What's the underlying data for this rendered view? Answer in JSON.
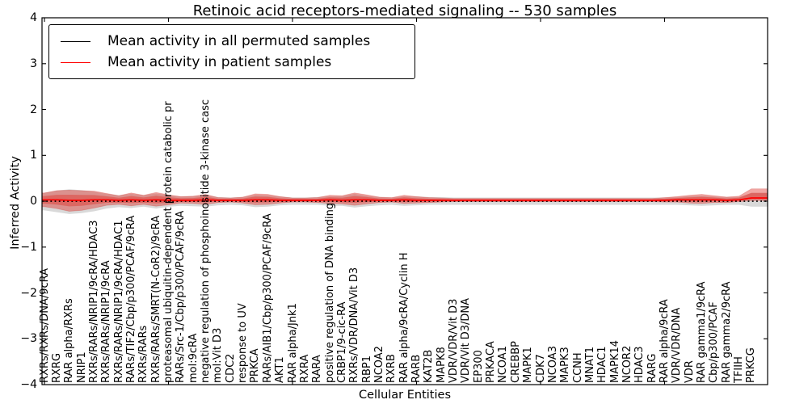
{
  "window": {
    "kind": "static-plot-figure"
  },
  "chart_data": {
    "type": "line",
    "title": "Retinoic acid receptors-mediated signaling -- 530 samples",
    "xlabel": "Cellular Entities",
    "ylabel": "Inferred Activity",
    "ylim": [
      -4,
      4
    ],
    "ytick_values": [
      4,
      3,
      2,
      1,
      0,
      -1,
      -2,
      -3,
      -4
    ],
    "ytick_labels": [
      "4",
      "3",
      "2",
      "1",
      "0",
      "−1",
      "−2",
      "−3",
      "−4"
    ],
    "xtick_interval": 10,
    "grid": false,
    "legend_position": "upper left",
    "categories": [
      "RXRs/RXRs/DNA/9cRA",
      "RXRG",
      "RAR alpha/RXRs",
      "NRIP1",
      "RXRs/RARs/NRIP1/9cRA/HDAC3",
      "RXRs/RARs/NRIP1/9cRA",
      "RXRs/RARs/NRIP1/9cRA/HDAC1",
      "RARs/TIF2/Cbp/p300/PCAF/9cRA",
      "RXRs/RARs",
      "RXRs/RARs/SMRT(N-CoR2)/9cRA",
      "proteasomal ubiquitin-dependent protein catabolic pr",
      "RARs/Src-1/Cbp/p300/PCAF/9cRA",
      "mol:9cRA",
      "negative regulation of phosphoinositide 3-kinase casc",
      "mol:Vit D3",
      "CDC2",
      "response to UV",
      "PRKCA",
      "RARs/AIB1/Cbp/p300/PCAF/9cRA",
      "AKT1",
      "RAR alpha/Jnk1",
      "RXRA",
      "RARA",
      "positive regulation of DNA binding",
      "CRBP1/9-cic-RA",
      "RXRs/VDR/DNA/Vit D3",
      "RBP1",
      "NCOA2",
      "RXRB",
      "RAR alpha/9cRA/Cyclin H",
      "RARB",
      "KAT2B",
      "MAPK8",
      "VDR/VDR/Vit D3",
      "VDR/Vit D3/DNA",
      "EP300",
      "PRKACA",
      "NCOA1",
      "CREBBP",
      "MAPK1",
      "CDK7",
      "NCOA3",
      "MAPK3",
      "CCNH",
      "MNAT1",
      "HDAC1",
      "MAPK14",
      "NCOR2",
      "HDAC3",
      "RARG",
      "RAR alpha/9cRA",
      "VDR/VDR/DNA",
      "VDR",
      "RAR gamma1/9cRA",
      "Cbp/p300/PCAF",
      "RAR gamma2/9cRA",
      "TFIIH",
      "PRKCG"
    ],
    "series": [
      {
        "name": "Mean activity in all permuted samples",
        "color": "#000000",
        "style": "dotted",
        "values": [
          0,
          0,
          0,
          0,
          0,
          0,
          0,
          0,
          0,
          0,
          0,
          0,
          0,
          0,
          0,
          0,
          0,
          0,
          0,
          0,
          0,
          0,
          0,
          0,
          0,
          0,
          0,
          0,
          0,
          0,
          0,
          0,
          0,
          0,
          0,
          0,
          0,
          0,
          0,
          0,
          0,
          0,
          0,
          0,
          0,
          0,
          0,
          0,
          0,
          0,
          0,
          0,
          0,
          0,
          0,
          0,
          0,
          0
        ]
      },
      {
        "name": "Mean activity in patient samples",
        "color": "#ff0000",
        "style": "solid",
        "values": [
          0.03,
          0.03,
          0.02,
          0.02,
          0.03,
          0.03,
          0.02,
          0.03,
          0.02,
          0.03,
          0.02,
          0.02,
          0.02,
          0.03,
          0.02,
          0.02,
          0.02,
          0.03,
          0.03,
          0.02,
          0.02,
          0.02,
          0.02,
          0.03,
          0.02,
          0.03,
          0.03,
          0.02,
          0.02,
          0.03,
          0.02,
          0.02,
          0.02,
          0.02,
          0.02,
          0.02,
          0.02,
          0.02,
          0.02,
          0.02,
          0.02,
          0.02,
          0.02,
          0.02,
          0.02,
          0.02,
          0.02,
          0.02,
          0.02,
          0.02,
          0.02,
          0.03,
          0.03,
          0.03,
          0.03,
          0.02,
          0.03,
          0.07
        ]
      }
    ],
    "bands": [
      {
        "name": "permuted-samples-range",
        "color": "rgba(120,120,120,0.28)",
        "center": "series.0",
        "upper": [
          0.18,
          0.23,
          0.26,
          0.24,
          0.21,
          0.16,
          0.13,
          0.16,
          0.13,
          0.17,
          0.13,
          0.1,
          0.11,
          0.13,
          0.09,
          0.08,
          0.09,
          0.14,
          0.13,
          0.1,
          0.08,
          0.08,
          0.09,
          0.11,
          0.11,
          0.16,
          0.12,
          0.09,
          0.08,
          0.11,
          0.1,
          0.09,
          0.09,
          0.08,
          0.08,
          0.08,
          0.08,
          0.08,
          0.08,
          0.08,
          0.08,
          0.08,
          0.08,
          0.08,
          0.08,
          0.08,
          0.08,
          0.08,
          0.08,
          0.08,
          0.08,
          0.09,
          0.11,
          0.12,
          0.1,
          0.09,
          0.09,
          0.18
        ],
        "lower": [
          0.2,
          0.24,
          0.28,
          0.26,
          0.22,
          0.16,
          0.13,
          0.15,
          0.12,
          0.16,
          0.12,
          0.1,
          0.11,
          0.12,
          0.09,
          0.08,
          0.09,
          0.13,
          0.12,
          0.09,
          0.08,
          0.08,
          0.08,
          0.1,
          0.1,
          0.14,
          0.11,
          0.09,
          0.08,
          0.1,
          0.09,
          0.08,
          0.08,
          0.08,
          0.08,
          0.08,
          0.08,
          0.08,
          0.08,
          0.08,
          0.08,
          0.08,
          0.08,
          0.08,
          0.08,
          0.08,
          0.08,
          0.08,
          0.08,
          0.08,
          0.08,
          0.08,
          0.09,
          0.1,
          0.09,
          0.08,
          0.08,
          0.12
        ]
      },
      {
        "name": "patient-samples-range",
        "color": "rgba(222,45,38,0.42)",
        "center": "series.1",
        "upper": [
          0.15,
          0.2,
          0.22,
          0.21,
          0.19,
          0.14,
          0.1,
          0.15,
          0.11,
          0.16,
          0.12,
          0.08,
          0.09,
          0.12,
          0.06,
          0.05,
          0.07,
          0.13,
          0.12,
          0.08,
          0.05,
          0.05,
          0.06,
          0.1,
          0.1,
          0.15,
          0.11,
          0.07,
          0.06,
          0.1,
          0.08,
          0.06,
          0.05,
          0.04,
          0.04,
          0.04,
          0.04,
          0.04,
          0.04,
          0.04,
          0.04,
          0.04,
          0.04,
          0.04,
          0.04,
          0.04,
          0.04,
          0.04,
          0.04,
          0.04,
          0.06,
          0.07,
          0.1,
          0.12,
          0.09,
          0.07,
          0.08,
          0.2
        ],
        "lower": [
          0.15,
          0.19,
          0.24,
          0.22,
          0.18,
          0.12,
          0.09,
          0.13,
          0.09,
          0.14,
          0.1,
          0.06,
          0.07,
          0.1,
          0.05,
          0.04,
          0.06,
          0.11,
          0.1,
          0.06,
          0.04,
          0.04,
          0.05,
          0.08,
          0.08,
          0.12,
          0.09,
          0.05,
          0.04,
          0.08,
          0.06,
          0.05,
          0.04,
          0.03,
          0.03,
          0.03,
          0.03,
          0.03,
          0.03,
          0.03,
          0.03,
          0.03,
          0.03,
          0.03,
          0.03,
          0.03,
          0.03,
          0.03,
          0.03,
          0.03,
          0.04,
          0.05,
          0.07,
          0.08,
          0.06,
          0.05,
          0.04,
          0.06
        ]
      }
    ]
  }
}
